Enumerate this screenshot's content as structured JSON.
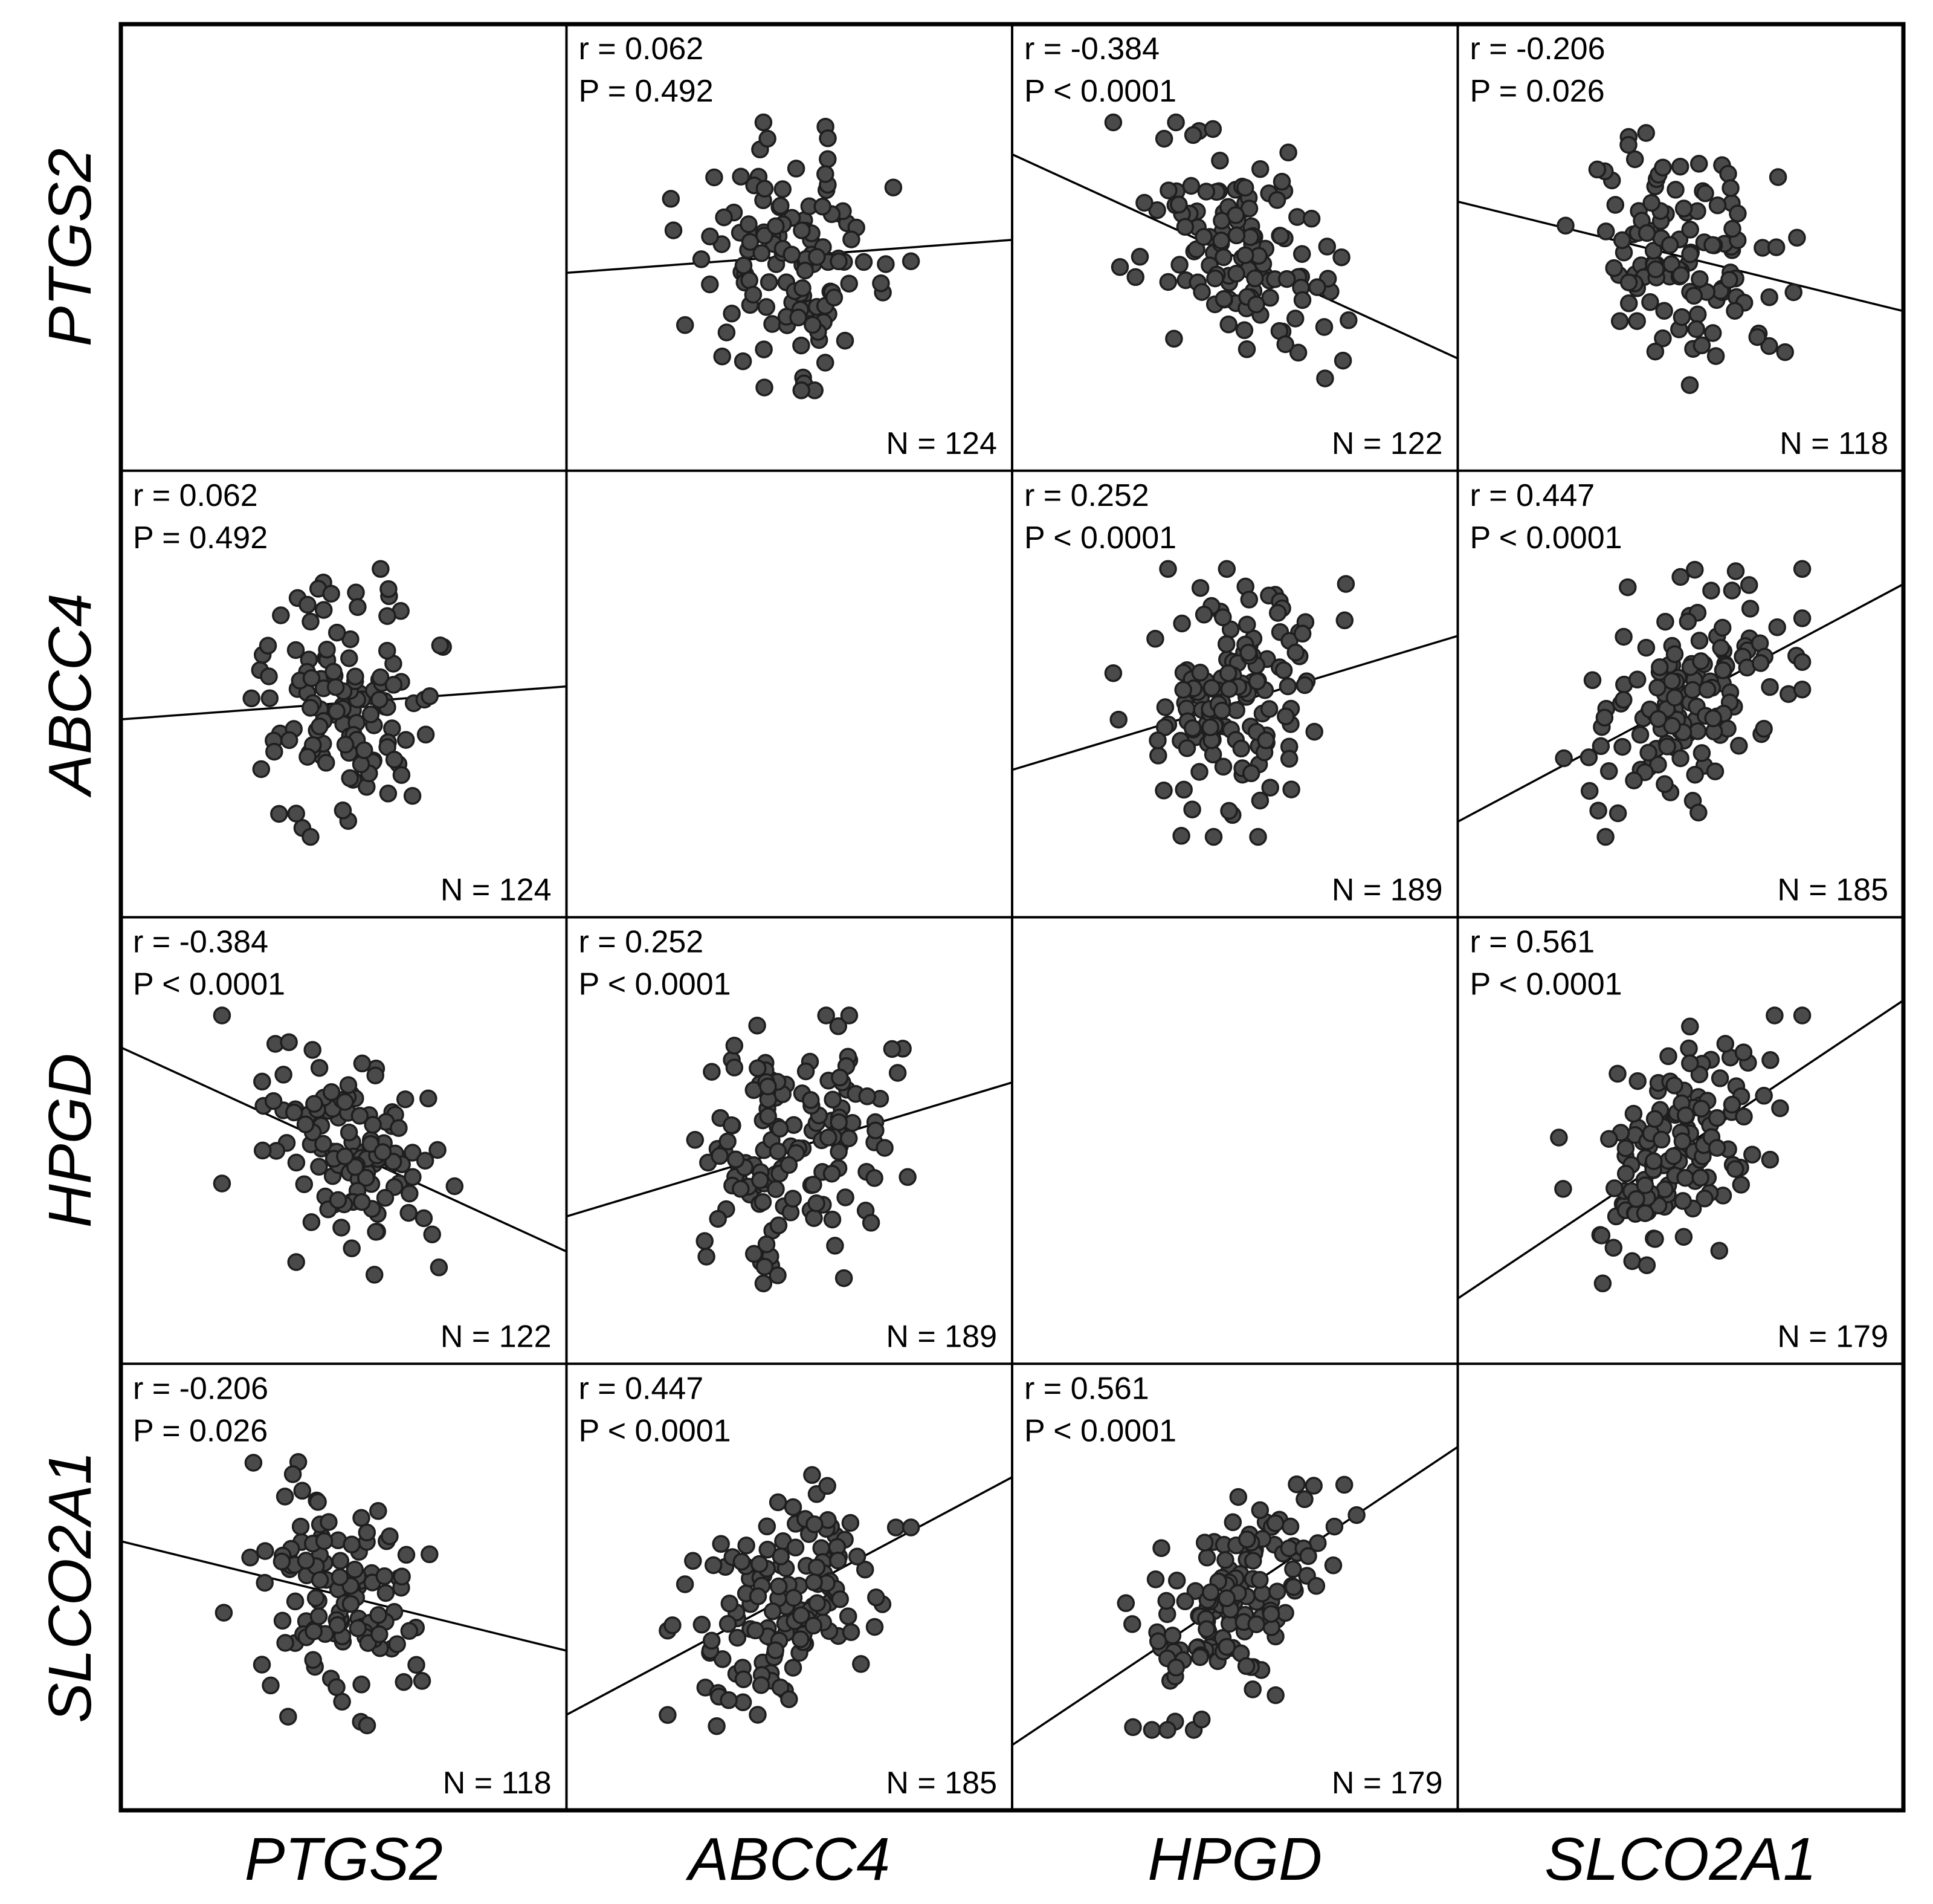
{
  "chart_data": {
    "type": "scatter",
    "title": "",
    "layout": "scatterplot-matrix",
    "genes": [
      "PTGS2",
      "ABCC4",
      "HPGD",
      "SLCO2A1"
    ],
    "pairs": [
      {
        "row": "PTGS2",
        "col": "ABCC4",
        "r_label": "r = 0.062",
        "p_label": "P = 0.492",
        "n_label": "N = 124",
        "r": 0.062,
        "n": 124
      },
      {
        "row": "PTGS2",
        "col": "HPGD",
        "r_label": "r = -0.384",
        "p_label": "P < 0.0001",
        "n_label": "N = 122",
        "r": -0.384,
        "n": 122
      },
      {
        "row": "PTGS2",
        "col": "SLCO2A1",
        "r_label": "r = -0.206",
        "p_label": "P = 0.026",
        "n_label": "N = 118",
        "r": -0.206,
        "n": 118
      },
      {
        "row": "ABCC4",
        "col": "PTGS2",
        "r_label": "r = 0.062",
        "p_label": "P = 0.492",
        "n_label": "N = 124",
        "r": 0.062,
        "n": 124
      },
      {
        "row": "ABCC4",
        "col": "HPGD",
        "r_label": "r = 0.252",
        "p_label": "P < 0.0001",
        "n_label": "N = 189",
        "r": 0.252,
        "n": 189
      },
      {
        "row": "ABCC4",
        "col": "SLCO2A1",
        "r_label": "r = 0.447",
        "p_label": "P < 0.0001",
        "n_label": "N = 185",
        "r": 0.447,
        "n": 185
      },
      {
        "row": "HPGD",
        "col": "PTGS2",
        "r_label": "r = -0.384",
        "p_label": "P < 0.0001",
        "n_label": "N = 122",
        "r": -0.384,
        "n": 122
      },
      {
        "row": "HPGD",
        "col": "ABCC4",
        "r_label": "r = 0.252",
        "p_label": "P < 0.0001",
        "n_label": "N = 189",
        "r": 0.252,
        "n": 189
      },
      {
        "row": "HPGD",
        "col": "SLCO2A1",
        "r_label": "r = 0.561",
        "p_label": "P < 0.0001",
        "n_label": "N = 179",
        "r": 0.561,
        "n": 179
      },
      {
        "row": "SLCO2A1",
        "col": "PTGS2",
        "r_label": "r = -0.206",
        "p_label": "P = 0.026",
        "n_label": "N = 118",
        "r": -0.206,
        "n": 118
      },
      {
        "row": "SLCO2A1",
        "col": "ABCC4",
        "r_label": "r = 0.447",
        "p_label": "P < 0.0001",
        "n_label": "N = 185",
        "r": 0.447,
        "n": 185
      },
      {
        "row": "SLCO2A1",
        "col": "HPGD",
        "r_label": "r = 0.561",
        "p_label": "P < 0.0001",
        "n_label": "N = 179",
        "r": 0.561,
        "n": 179
      }
    ]
  }
}
